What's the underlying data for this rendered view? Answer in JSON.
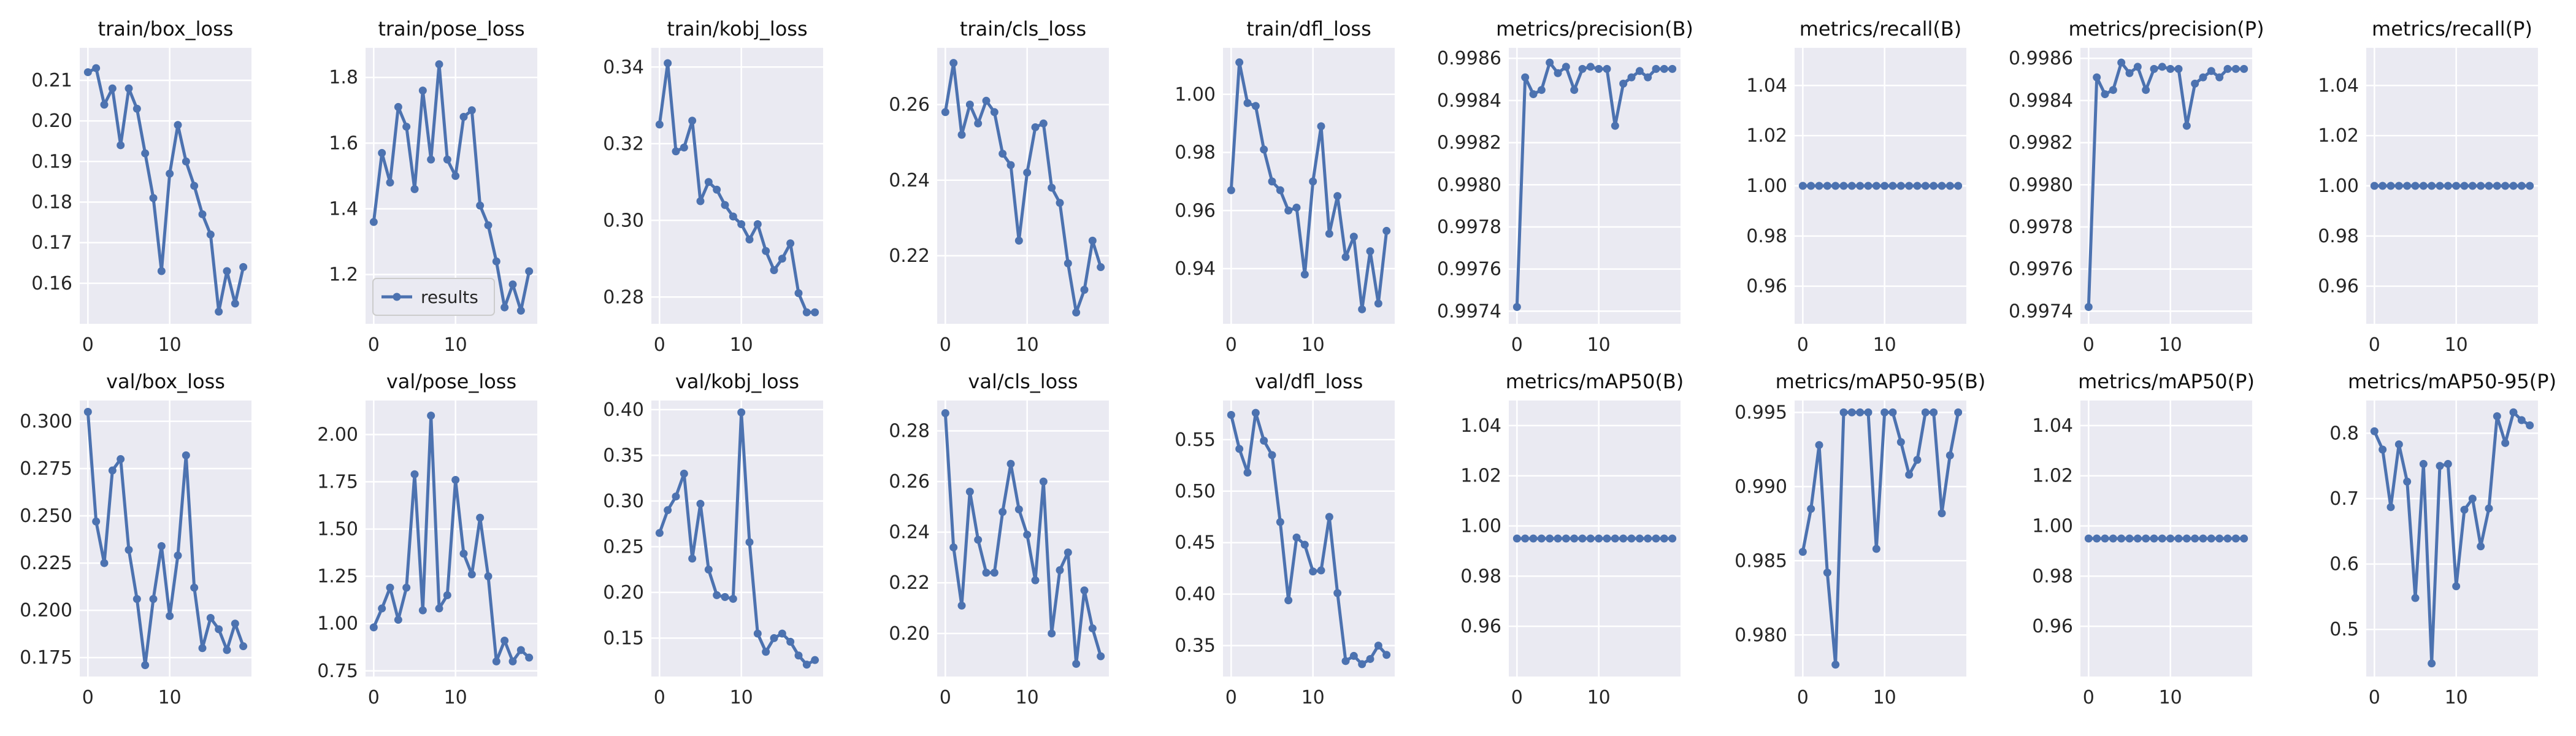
{
  "style": {
    "line_color": "#4c72b0",
    "panel_background": "#eaeaf2",
    "grid_color": "#ffffff",
    "text_color": "#262626"
  },
  "legend": {
    "label": "results"
  },
  "chart_data": [
    {
      "type": "line",
      "title": "train/box_loss",
      "x": [
        0,
        1,
        2,
        3,
        4,
        5,
        6,
        7,
        8,
        9,
        10,
        11,
        12,
        13,
        14,
        15,
        16,
        17,
        18,
        19
      ],
      "values": [
        0.212,
        0.213,
        0.204,
        0.208,
        0.194,
        0.208,
        0.203,
        0.192,
        0.181,
        0.163,
        0.187,
        0.199,
        0.19,
        0.184,
        0.177,
        0.172,
        0.153,
        0.163,
        0.155,
        0.164
      ],
      "ylim": [
        0.15,
        0.218
      ],
      "yticks": [
        0.16,
        0.17,
        0.18,
        0.19,
        0.2,
        0.21
      ],
      "ytick_labels": [
        "0.16",
        "0.17",
        "0.18",
        "0.19",
        "0.20",
        "0.21"
      ],
      "xticks": [
        0,
        10
      ],
      "xtick_labels": [
        "0",
        "10"
      ],
      "legend": false
    },
    {
      "type": "line",
      "title": "train/pose_loss",
      "x": [
        0,
        1,
        2,
        3,
        4,
        5,
        6,
        7,
        8,
        9,
        10,
        11,
        12,
        13,
        14,
        15,
        16,
        17,
        18,
        19
      ],
      "values": [
        1.36,
        1.57,
        1.48,
        1.71,
        1.65,
        1.46,
        1.76,
        1.55,
        1.84,
        1.55,
        1.5,
        1.68,
        1.7,
        1.41,
        1.35,
        1.24,
        1.1,
        1.17,
        1.09,
        1.21
      ],
      "ylim": [
        1.05,
        1.89
      ],
      "yticks": [
        1.2,
        1.4,
        1.6,
        1.8
      ],
      "ytick_labels": [
        "1.2",
        "1.4",
        "1.6",
        "1.8"
      ],
      "xticks": [
        0,
        10
      ],
      "xtick_labels": [
        "0",
        "10"
      ],
      "legend": true
    },
    {
      "type": "line",
      "title": "train/kobj_loss",
      "x": [
        0,
        1,
        2,
        3,
        4,
        5,
        6,
        7,
        8,
        9,
        10,
        11,
        12,
        13,
        14,
        15,
        16,
        17,
        18,
        19
      ],
      "values": [
        0.325,
        0.341,
        0.318,
        0.319,
        0.326,
        0.305,
        0.31,
        0.308,
        0.304,
        0.301,
        0.299,
        0.295,
        0.299,
        0.292,
        0.287,
        0.29,
        0.294,
        0.281,
        0.276,
        0.276
      ],
      "ylim": [
        0.273,
        0.345
      ],
      "yticks": [
        0.28,
        0.3,
        0.32,
        0.34
      ],
      "ytick_labels": [
        "0.28",
        "0.30",
        "0.32",
        "0.34"
      ],
      "xticks": [
        0,
        10
      ],
      "xtick_labels": [
        "0",
        "10"
      ],
      "legend": false
    },
    {
      "type": "line",
      "title": "train/cls_loss",
      "x": [
        0,
        1,
        2,
        3,
        4,
        5,
        6,
        7,
        8,
        9,
        10,
        11,
        12,
        13,
        14,
        15,
        16,
        17,
        18,
        19
      ],
      "values": [
        0.258,
        0.271,
        0.252,
        0.26,
        0.255,
        0.261,
        0.258,
        0.247,
        0.244,
        0.224,
        0.242,
        0.254,
        0.255,
        0.238,
        0.234,
        0.218,
        0.205,
        0.211,
        0.224,
        0.217
      ],
      "ylim": [
        0.202,
        0.275
      ],
      "yticks": [
        0.22,
        0.24,
        0.26
      ],
      "ytick_labels": [
        "0.22",
        "0.24",
        "0.26"
      ],
      "xticks": [
        0,
        10
      ],
      "xtick_labels": [
        "0",
        "10"
      ],
      "legend": false
    },
    {
      "type": "line",
      "title": "train/dfl_loss",
      "x": [
        0,
        1,
        2,
        3,
        4,
        5,
        6,
        7,
        8,
        9,
        10,
        11,
        12,
        13,
        14,
        15,
        16,
        17,
        18,
        19
      ],
      "values": [
        0.967,
        1.011,
        0.997,
        0.996,
        0.981,
        0.97,
        0.967,
        0.96,
        0.961,
        0.938,
        0.97,
        0.989,
        0.952,
        0.965,
        0.944,
        0.951,
        0.926,
        0.946,
        0.928,
        0.953
      ],
      "ylim": [
        0.921,
        1.016
      ],
      "yticks": [
        0.94,
        0.96,
        0.98,
        1.0
      ],
      "ytick_labels": [
        "0.94",
        "0.96",
        "0.98",
        "1.00"
      ],
      "xticks": [
        0,
        10
      ],
      "xtick_labels": [
        "0",
        "10"
      ],
      "legend": false
    },
    {
      "type": "line",
      "title": "metrics/precision(B)",
      "x": [
        0,
        1,
        2,
        3,
        4,
        5,
        6,
        7,
        8,
        9,
        10,
        11,
        12,
        13,
        14,
        15,
        16,
        17,
        18,
        19
      ],
      "values": [
        0.99742,
        0.99851,
        0.99843,
        0.99845,
        0.99858,
        0.99853,
        0.99856,
        0.99845,
        0.99855,
        0.99856,
        0.99855,
        0.99855,
        0.99828,
        0.99848,
        0.99851,
        0.99854,
        0.99851,
        0.99855,
        0.99855,
        0.99855
      ],
      "ylim": [
        0.99734,
        0.99865
      ],
      "yticks": [
        0.9974,
        0.9976,
        0.9978,
        0.998,
        0.9982,
        0.9984,
        0.9986
      ],
      "ytick_labels": [
        "0.9974",
        "0.9976",
        "0.9978",
        "0.9980",
        "0.9982",
        "0.9984",
        "0.9986"
      ],
      "xticks": [
        0,
        10
      ],
      "xtick_labels": [
        "0",
        "10"
      ],
      "legend": false
    },
    {
      "type": "line",
      "title": "metrics/recall(B)",
      "x": [
        0,
        1,
        2,
        3,
        4,
        5,
        6,
        7,
        8,
        9,
        10,
        11,
        12,
        13,
        14,
        15,
        16,
        17,
        18,
        19
      ],
      "values": [
        1,
        1,
        1,
        1,
        1,
        1,
        1,
        1,
        1,
        1,
        1,
        1,
        1,
        1,
        1,
        1,
        1,
        1,
        1,
        1
      ],
      "ylim": [
        0.945,
        1.055
      ],
      "yticks": [
        0.96,
        0.98,
        1.0,
        1.02,
        1.04
      ],
      "ytick_labels": [
        "0.96",
        "0.98",
        "1.00",
        "1.02",
        "1.04"
      ],
      "xticks": [
        0,
        10
      ],
      "xtick_labels": [
        "0",
        "10"
      ],
      "legend": false
    },
    {
      "type": "line",
      "title": "metrics/precision(P)",
      "x": [
        0,
        1,
        2,
        3,
        4,
        5,
        6,
        7,
        8,
        9,
        10,
        11,
        12,
        13,
        14,
        15,
        16,
        17,
        18,
        19
      ],
      "values": [
        0.99742,
        0.99851,
        0.99843,
        0.99845,
        0.99858,
        0.99853,
        0.99856,
        0.99845,
        0.99855,
        0.99856,
        0.99855,
        0.99855,
        0.99828,
        0.99848,
        0.99851,
        0.99854,
        0.99851,
        0.99855,
        0.99855,
        0.99855
      ],
      "ylim": [
        0.99734,
        0.99865
      ],
      "yticks": [
        0.9974,
        0.9976,
        0.9978,
        0.998,
        0.9982,
        0.9984,
        0.9986
      ],
      "ytick_labels": [
        "0.9974",
        "0.9976",
        "0.9978",
        "0.9980",
        "0.9982",
        "0.9984",
        "0.9986"
      ],
      "xticks": [
        0,
        10
      ],
      "xtick_labels": [
        "0",
        "10"
      ],
      "legend": false
    },
    {
      "type": "line",
      "title": "metrics/recall(P)",
      "x": [
        0,
        1,
        2,
        3,
        4,
        5,
        6,
        7,
        8,
        9,
        10,
        11,
        12,
        13,
        14,
        15,
        16,
        17,
        18,
        19
      ],
      "values": [
        1,
        1,
        1,
        1,
        1,
        1,
        1,
        1,
        1,
        1,
        1,
        1,
        1,
        1,
        1,
        1,
        1,
        1,
        1,
        1
      ],
      "ylim": [
        0.945,
        1.055
      ],
      "yticks": [
        0.96,
        0.98,
        1.0,
        1.02,
        1.04
      ],
      "ytick_labels": [
        "0.96",
        "0.98",
        "1.00",
        "1.02",
        "1.04"
      ],
      "xticks": [
        0,
        10
      ],
      "xtick_labels": [
        "0",
        "10"
      ],
      "legend": false
    },
    {
      "type": "line",
      "title": "val/box_loss",
      "x": [
        0,
        1,
        2,
        3,
        4,
        5,
        6,
        7,
        8,
        9,
        10,
        11,
        12,
        13,
        14,
        15,
        16,
        17,
        18,
        19
      ],
      "values": [
        0.305,
        0.247,
        0.225,
        0.274,
        0.28,
        0.232,
        0.206,
        0.171,
        0.206,
        0.234,
        0.197,
        0.229,
        0.282,
        0.212,
        0.18,
        0.196,
        0.19,
        0.179,
        0.193,
        0.181
      ],
      "ylim": [
        0.165,
        0.311
      ],
      "yticks": [
        0.175,
        0.2,
        0.225,
        0.25,
        0.275,
        0.3
      ],
      "ytick_labels": [
        "0.175",
        "0.200",
        "0.225",
        "0.250",
        "0.275",
        "0.300"
      ],
      "xticks": [
        0,
        10
      ],
      "xtick_labels": [
        "0",
        "10"
      ],
      "legend": false
    },
    {
      "type": "line",
      "title": "val/pose_loss",
      "x": [
        0,
        1,
        2,
        3,
        4,
        5,
        6,
        7,
        8,
        9,
        10,
        11,
        12,
        13,
        14,
        15,
        16,
        17,
        18,
        19
      ],
      "values": [
        0.98,
        1.08,
        1.19,
        1.02,
        1.19,
        1.79,
        1.07,
        2.1,
        1.08,
        1.15,
        1.76,
        1.37,
        1.26,
        1.56,
        1.25,
        0.8,
        0.91,
        0.8,
        0.86,
        0.82
      ],
      "ylim": [
        0.72,
        2.18
      ],
      "yticks": [
        0.75,
        1.0,
        1.25,
        1.5,
        1.75,
        2.0
      ],
      "ytick_labels": [
        "0.75",
        "1.00",
        "1.25",
        "1.50",
        "1.75",
        "2.00"
      ],
      "xticks": [
        0,
        10
      ],
      "xtick_labels": [
        "0",
        "10"
      ],
      "legend": false
    },
    {
      "type": "line",
      "title": "val/kobj_loss",
      "x": [
        0,
        1,
        2,
        3,
        4,
        5,
        6,
        7,
        8,
        9,
        10,
        11,
        12,
        13,
        14,
        15,
        16,
        17,
        18,
        19
      ],
      "values": [
        0.265,
        0.29,
        0.305,
        0.33,
        0.237,
        0.297,
        0.225,
        0.197,
        0.195,
        0.193,
        0.397,
        0.255,
        0.155,
        0.135,
        0.15,
        0.155,
        0.146,
        0.131,
        0.121,
        0.126
      ],
      "ylim": [
        0.108,
        0.41
      ],
      "yticks": [
        0.15,
        0.2,
        0.25,
        0.3,
        0.35,
        0.4
      ],
      "ytick_labels": [
        "0.15",
        "0.20",
        "0.25",
        "0.30",
        "0.35",
        "0.40"
      ],
      "xticks": [
        0,
        10
      ],
      "xtick_labels": [
        "0",
        "10"
      ],
      "legend": false
    },
    {
      "type": "line",
      "title": "val/cls_loss",
      "x": [
        0,
        1,
        2,
        3,
        4,
        5,
        6,
        7,
        8,
        9,
        10,
        11,
        12,
        13,
        14,
        15,
        16,
        17,
        18,
        19
      ],
      "values": [
        0.287,
        0.234,
        0.211,
        0.256,
        0.237,
        0.224,
        0.224,
        0.248,
        0.267,
        0.249,
        0.239,
        0.221,
        0.26,
        0.2,
        0.225,
        0.232,
        0.188,
        0.217,
        0.202,
        0.191
      ],
      "ylim": [
        0.183,
        0.292
      ],
      "yticks": [
        0.2,
        0.22,
        0.24,
        0.26,
        0.28
      ],
      "ytick_labels": [
        "0.20",
        "0.22",
        "0.24",
        "0.26",
        "0.28"
      ],
      "xticks": [
        0,
        10
      ],
      "xtick_labels": [
        "0",
        "10"
      ],
      "legend": false
    },
    {
      "type": "line",
      "title": "val/dfl_loss",
      "x": [
        0,
        1,
        2,
        3,
        4,
        5,
        6,
        7,
        8,
        9,
        10,
        11,
        12,
        13,
        14,
        15,
        16,
        17,
        18,
        19
      ],
      "values": [
        0.574,
        0.541,
        0.518,
        0.576,
        0.549,
        0.535,
        0.47,
        0.394,
        0.455,
        0.448,
        0.422,
        0.423,
        0.475,
        0.401,
        0.335,
        0.34,
        0.332,
        0.337,
        0.35,
        0.341
      ],
      "ylim": [
        0.32,
        0.588
      ],
      "yticks": [
        0.35,
        0.4,
        0.45,
        0.5,
        0.55
      ],
      "ytick_labels": [
        "0.35",
        "0.40",
        "0.45",
        "0.50",
        "0.55"
      ],
      "xticks": [
        0,
        10
      ],
      "xtick_labels": [
        "0",
        "10"
      ],
      "legend": false
    },
    {
      "type": "line",
      "title": "metrics/mAP50(B)",
      "x": [
        0,
        1,
        2,
        3,
        4,
        5,
        6,
        7,
        8,
        9,
        10,
        11,
        12,
        13,
        14,
        15,
        16,
        17,
        18,
        19
      ],
      "values": [
        0.995,
        0.995,
        0.995,
        0.995,
        0.995,
        0.995,
        0.995,
        0.995,
        0.995,
        0.995,
        0.995,
        0.995,
        0.995,
        0.995,
        0.995,
        0.995,
        0.995,
        0.995,
        0.995,
        0.995
      ],
      "ylim": [
        0.94,
        1.05
      ],
      "yticks": [
        0.96,
        0.98,
        1.0,
        1.02,
        1.04
      ],
      "ytick_labels": [
        "0.96",
        "0.98",
        "1.00",
        "1.02",
        "1.04"
      ],
      "xticks": [
        0,
        10
      ],
      "xtick_labels": [
        "0",
        "10"
      ],
      "legend": false
    },
    {
      "type": "line",
      "title": "metrics/mAP50-95(B)",
      "x": [
        0,
        1,
        2,
        3,
        4,
        5,
        6,
        7,
        8,
        9,
        10,
        11,
        12,
        13,
        14,
        15,
        16,
        17,
        18,
        19
      ],
      "values": [
        0.9856,
        0.9885,
        0.9928,
        0.9842,
        0.978,
        0.995,
        0.995,
        0.995,
        0.995,
        0.9858,
        0.995,
        0.995,
        0.993,
        0.9908,
        0.9918,
        0.995,
        0.995,
        0.9882,
        0.9921,
        0.995
      ],
      "ylim": [
        0.9772,
        0.9958
      ],
      "yticks": [
        0.98,
        0.985,
        0.99,
        0.995
      ],
      "ytick_labels": [
        "0.980",
        "0.985",
        "0.990",
        "0.995"
      ],
      "xticks": [
        0,
        10
      ],
      "xtick_labels": [
        "0",
        "10"
      ],
      "legend": false
    },
    {
      "type": "line",
      "title": "metrics/mAP50(P)",
      "x": [
        0,
        1,
        2,
        3,
        4,
        5,
        6,
        7,
        8,
        9,
        10,
        11,
        12,
        13,
        14,
        15,
        16,
        17,
        18,
        19
      ],
      "values": [
        0.995,
        0.995,
        0.995,
        0.995,
        0.995,
        0.995,
        0.995,
        0.995,
        0.995,
        0.995,
        0.995,
        0.995,
        0.995,
        0.995,
        0.995,
        0.995,
        0.995,
        0.995,
        0.995,
        0.995
      ],
      "ylim": [
        0.94,
        1.05
      ],
      "yticks": [
        0.96,
        0.98,
        1.0,
        1.02,
        1.04
      ],
      "ytick_labels": [
        "0.96",
        "0.98",
        "1.00",
        "1.02",
        "1.04"
      ],
      "xticks": [
        0,
        10
      ],
      "xtick_labels": [
        "0",
        "10"
      ],
      "legend": false
    },
    {
      "type": "line",
      "title": "metrics/mAP50-95(P)",
      "x": [
        0,
        1,
        2,
        3,
        4,
        5,
        6,
        7,
        8,
        9,
        10,
        11,
        12,
        13,
        14,
        15,
        16,
        17,
        18,
        19
      ],
      "values": [
        0.803,
        0.775,
        0.687,
        0.783,
        0.726,
        0.548,
        0.753,
        0.448,
        0.75,
        0.753,
        0.566,
        0.683,
        0.7,
        0.627,
        0.685,
        0.826,
        0.785,
        0.832,
        0.82,
        0.812
      ],
      "ylim": [
        0.428,
        0.85
      ],
      "yticks": [
        0.5,
        0.6,
        0.7,
        0.8
      ],
      "ytick_labels": [
        "0.5",
        "0.6",
        "0.7",
        "0.8"
      ],
      "xticks": [
        0,
        10
      ],
      "xtick_labels": [
        "0",
        "10"
      ],
      "legend": false
    }
  ]
}
